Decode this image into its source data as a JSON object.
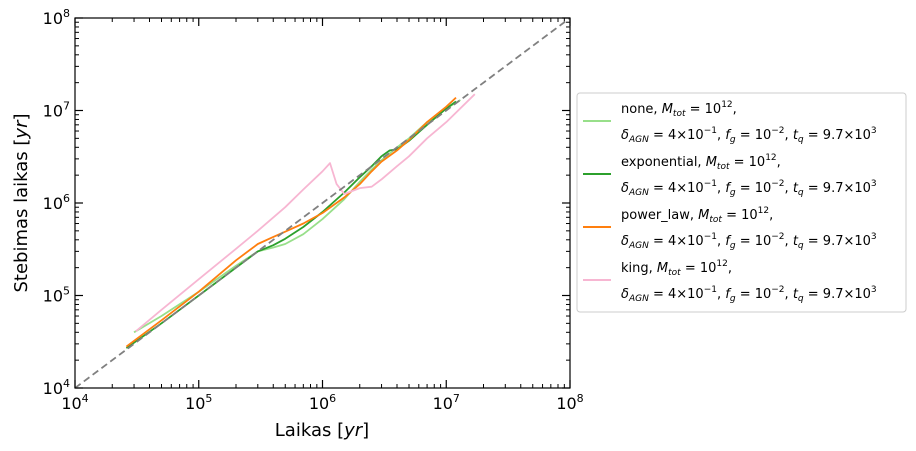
{
  "chart_data": {
    "type": "line",
    "title": "",
    "xlabel": "Laikas [yr]",
    "ylabel": "Stebimas laikas [yr]",
    "xscale": "log",
    "yscale": "log",
    "xlim": [
      10000,
      100000000
    ],
    "ylim": [
      10000,
      100000000
    ],
    "grid": false,
    "legend_position": "outside-right",
    "x_ticks": [
      {
        "value": 10000,
        "base": "10",
        "exp": "4"
      },
      {
        "value": 100000,
        "base": "10",
        "exp": "5"
      },
      {
        "value": 1000000,
        "base": "10",
        "exp": "6"
      },
      {
        "value": 10000000,
        "base": "10",
        "exp": "7"
      },
      {
        "value": 100000000,
        "base": "10",
        "exp": "8"
      }
    ],
    "y_ticks": [
      {
        "value": 10000,
        "base": "10",
        "exp": "4"
      },
      {
        "value": 100000,
        "base": "10",
        "exp": "5"
      },
      {
        "value": 1000000,
        "base": "10",
        "exp": "6"
      },
      {
        "value": 10000000,
        "base": "10",
        "exp": "7"
      },
      {
        "value": 100000000,
        "base": "10",
        "exp": "8"
      }
    ],
    "reference_line": {
      "x": [
        10000,
        100000000
      ],
      "y": [
        10000,
        100000000
      ],
      "color": "#808080",
      "style": "dashed"
    },
    "series": [
      {
        "name": "none",
        "legend_line2": "δAGN = 4×10−1, fg = 10−2, tq = 9.7×103",
        "color": "#98df8a",
        "x": [
          30000,
          50000,
          100000,
          200000,
          300000,
          400000,
          500000,
          700000,
          1000000,
          1500000,
          2000000,
          2500000,
          3000000,
          4000000,
          5000000,
          7000000,
          10000000,
          13000000
        ],
        "y": [
          40000,
          60000,
          110000,
          210000,
          300000,
          330000,
          360000,
          460000,
          670000,
          1100000,
          1700000,
          2300000,
          2900000,
          4000000,
          5000000,
          7500000,
          10500000,
          13000000
        ]
      },
      {
        "name": "exponential",
        "legend_line2": "δAGN = 4×10−1, fg = 10−2, tq = 9.7×103",
        "color": "#2ca02c",
        "x": [
          26000,
          50000,
          100000,
          200000,
          300000,
          400000,
          500000,
          700000,
          1000000,
          1500000,
          2000000,
          2500000,
          3000000,
          3500000,
          4000000,
          5000000,
          7000000,
          10000000,
          12000000
        ],
        "y": [
          27000,
          50000,
          100000,
          200000,
          300000,
          350000,
          410000,
          550000,
          800000,
          1300000,
          1900000,
          2500000,
          3200000,
          3700000,
          3800000,
          4700000,
          7000000,
          10500000,
          12500000
        ]
      },
      {
        "name": "power_law",
        "legend_line2": "δAGN = 4×10−1, fg = 10−2, tq = 9.7×103",
        "color": "#ff7f0e",
        "x": [
          26000,
          50000,
          100000,
          200000,
          300000,
          400000,
          500000,
          700000,
          1000000,
          1500000,
          2000000,
          2500000,
          3000000,
          4000000,
          5000000,
          7000000,
          10000000,
          12000000
        ],
        "y": [
          28000,
          54000,
          110000,
          240000,
          360000,
          430000,
          490000,
          600000,
          780000,
          1150000,
          1600000,
          2200000,
          2800000,
          3700000,
          4800000,
          7500000,
          11000000,
          13800000
        ]
      },
      {
        "name": "king",
        "legend_line2": "δAGN = 4×10−1, fg = 10−2, tq = 9.7×103",
        "color": "#f7b6d2",
        "x": [
          31000,
          50000,
          100000,
          200000,
          300000,
          500000,
          700000,
          1000000,
          1150000,
          1300000,
          1500000,
          2000000,
          2500000,
          3000000,
          4000000,
          5000000,
          7000000,
          10000000,
          17000000
        ],
        "y": [
          41000,
          70000,
          150000,
          320000,
          500000,
          900000,
          1400000,
          2200000,
          2700000,
          1600000,
          1250000,
          1450000,
          1500000,
          1800000,
          2500000,
          3200000,
          5000000,
          7500000,
          15000000
        ]
      }
    ]
  },
  "legend": {
    "entries": [
      {
        "label": "none",
        "color": "#98df8a"
      },
      {
        "label": "exponential",
        "color": "#2ca02c"
      },
      {
        "label": "power_law",
        "color": "#ff7f0e"
      },
      {
        "label": "king",
        "color": "#f7b6d2"
      }
    ]
  }
}
